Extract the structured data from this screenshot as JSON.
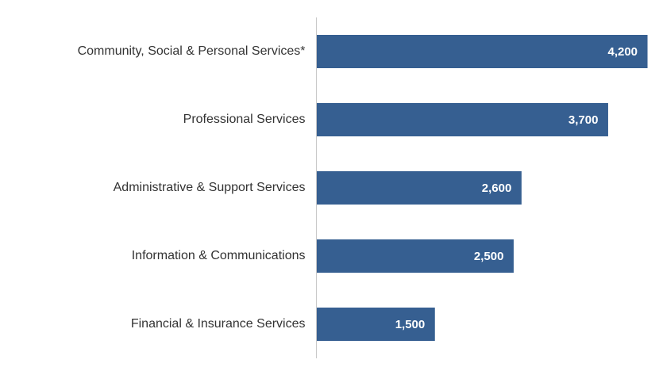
{
  "chart_data": {
    "type": "bar",
    "orientation": "horizontal",
    "categories": [
      "Community, Social & Personal Services*",
      "Professional Services",
      "Administrative & Support Services",
      "Information & Communications",
      "Financial & Insurance Services"
    ],
    "values": [
      4200,
      3700,
      2600,
      2500,
      1500
    ],
    "value_labels": [
      "4,200",
      "3,700",
      "2,600",
      "2,500",
      "1,500"
    ],
    "xlim": [
      0,
      4250
    ],
    "grid": false,
    "legend": "none",
    "bar_color": "#365F91"
  }
}
